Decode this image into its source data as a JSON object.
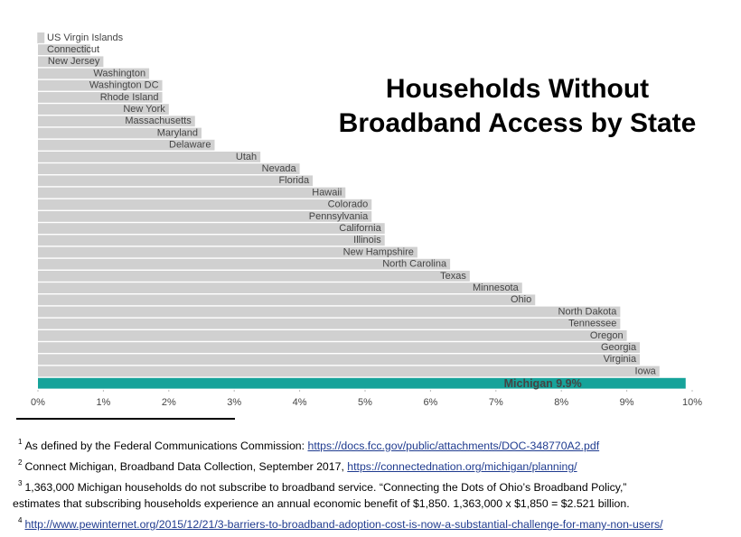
{
  "chart_data": {
    "type": "barh",
    "title": "Households Without Broadband Access by State",
    "categories": [
      "US Virgin Islands",
      "Connecticut",
      "New Jersey",
      "Washington",
      "Washington DC",
      "Rhode Island",
      "New York",
      "Massachusetts",
      "Maryland",
      "Delaware",
      "Utah",
      "Nevada",
      "Florida",
      "Hawaii",
      "Colorado",
      "Pennsylvania",
      "California",
      "Illinois",
      "New Hampshire",
      "North Carolina",
      "Texas",
      "Minnesota",
      "Ohio",
      "North Dakota",
      "Tennessee",
      "Oregon",
      "Georgia",
      "Virginia",
      "Iowa",
      null
    ],
    "values": [
      0.1,
      0.8,
      1.0,
      1.7,
      1.9,
      1.9,
      2.0,
      2.4,
      2.5,
      2.7,
      3.4,
      4.0,
      4.2,
      4.7,
      5.1,
      5.1,
      5.3,
      5.3,
      5.8,
      6.3,
      6.6,
      7.4,
      7.6,
      8.9,
      8.9,
      9.0,
      9.2,
      9.2,
      9.5,
      9.9
    ],
    "value_labels": [
      null,
      null,
      null,
      null,
      null,
      null,
      null,
      null,
      null,
      null,
      null,
      null,
      null,
      null,
      null,
      null,
      null,
      null,
      null,
      null,
      null,
      null,
      null,
      null,
      null,
      null,
      null,
      null,
      null,
      "Michigan 9.9%"
    ],
    "colors": [
      "#d0d0d0",
      "#d0d0d0",
      "#d0d0d0",
      "#d0d0d0",
      "#d0d0d0",
      "#d0d0d0",
      "#d0d0d0",
      "#d0d0d0",
      "#d0d0d0",
      "#d0d0d0",
      "#d0d0d0",
      "#d0d0d0",
      "#d0d0d0",
      "#d0d0d0",
      "#d0d0d0",
      "#d0d0d0",
      "#d0d0d0",
      "#d0d0d0",
      "#d0d0d0",
      "#d0d0d0",
      "#d0d0d0",
      "#d0d0d0",
      "#d0d0d0",
      "#d0d0d0",
      "#d0d0d0",
      "#d0d0d0",
      "#d0d0d0",
      "#d0d0d0",
      "#d0d0d0",
      "#16a39a"
    ],
    "xlim": [
      0,
      10
    ],
    "xticks": [
      {
        "value": 0,
        "label": "0%"
      },
      {
        "value": 1,
        "label": "1%"
      },
      {
        "value": 2,
        "label": "2%"
      },
      {
        "value": 3,
        "label": "3%"
      },
      {
        "value": 4,
        "label": "4%"
      },
      {
        "value": 5,
        "label": "5%"
      },
      {
        "value": 6,
        "label": "6%"
      },
      {
        "value": 7,
        "label": "7%"
      },
      {
        "value": 8,
        "label": "8%"
      },
      {
        "value": 9,
        "label": "9%"
      },
      {
        "value": 10,
        "label": "10%"
      }
    ],
    "grid": false
  },
  "footnotes": [
    {
      "number": "1",
      "lines": [
        "As defined by the Federal Communications Commission: "
      ],
      "link": "https://docs.fcc.gov/public/attachments/DOC-348770A2.pdf"
    },
    {
      "number": "2",
      "lines": [
        "Connect Michigan, Broadband Data Collection, September 2017, "
      ],
      "link": "https://connectednation.org/michigan/planning/"
    },
    {
      "number": "3",
      "lines": [
        "1,363,000 Michigan households do not subscribe to broadband service. “Connecting the Dots of Ohio’s Broadband Policy,”",
        "estimates that subscribing households experience an annual economic benefit of $1,850. 1,363,000 x $1,850 = $2.521 billion."
      ]
    },
    {
      "number": "4",
      "link": "http://www.pewinternet.org/2015/12/21/3-barriers-to-broadband-adoption-cost-is-now-a-substantial-challenge-for-many-non-users/"
    }
  ]
}
